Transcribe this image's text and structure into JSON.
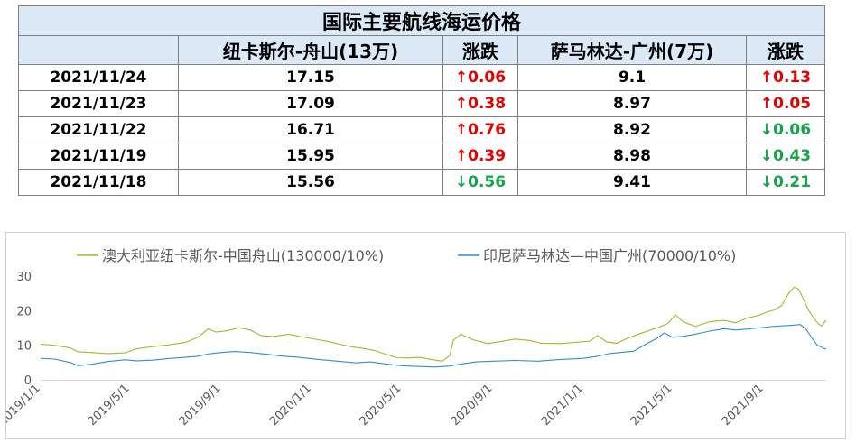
{
  "table": {
    "title": "国际主要航线海运价格",
    "headers": [
      "",
      "纽卡斯尔-舟山(13万)",
      "涨跌",
      "萨马林达-广州(7万)",
      "涨跌"
    ],
    "rows": [
      {
        "date": "2021/11/24",
        "route1": "17.15",
        "chg1": "↑0.06",
        "dir1": "up",
        "route2": "9.1",
        "chg2": "↑0.13",
        "dir2": "up"
      },
      {
        "date": "2021/11/23",
        "route1": "17.09",
        "chg1": "↑0.38",
        "dir1": "up",
        "route2": "8.97",
        "chg2": "↑0.05",
        "dir2": "up"
      },
      {
        "date": "2021/11/22",
        "route1": "16.71",
        "chg1": "↑0.76",
        "dir1": "up",
        "route2": "8.92",
        "chg2": "↓0.06",
        "dir2": "down"
      },
      {
        "date": "2021/11/19",
        "route1": "15.95",
        "chg1": "↑0.39",
        "dir1": "up",
        "route2": "8.98",
        "chg2": "↓0.43",
        "dir2": "down"
      },
      {
        "date": "2021/11/18",
        "route1": "15.56",
        "chg1": "↓0.56",
        "dir1": "down",
        "route2": "9.41",
        "chg2": "↓0.21",
        "dir2": "down"
      }
    ],
    "colors": {
      "header_bg": "#dbe9f6",
      "up": "#e60000",
      "down": "#17a34a"
    }
  },
  "chart_data": {
    "type": "line",
    "title": "",
    "xlabel": "",
    "ylabel": "",
    "ylim": [
      0,
      30
    ],
    "yticks": [
      "0",
      "10",
      "20",
      "30"
    ],
    "xlim": [
      "2019-01-01",
      "2021-11-24"
    ],
    "xticks": [
      {
        "date": "2019-01-01",
        "label": "2019/1/1"
      },
      {
        "date": "2019-05-01",
        "label": "2019/5/1"
      },
      {
        "date": "2019-09-01",
        "label": "2019/9/1"
      },
      {
        "date": "2020-01-01",
        "label": "2020/1/1"
      },
      {
        "date": "2020-05-01",
        "label": "2020/5/1"
      },
      {
        "date": "2020-09-01",
        "label": "2020/9/1"
      },
      {
        "date": "2021-01-01",
        "label": "2021/1/1"
      },
      {
        "date": "2021-05-01",
        "label": "2021/5/1"
      },
      {
        "date": "2021-09-01",
        "label": "2021/9/1"
      }
    ],
    "grid": false,
    "legend_position": "top",
    "series": [
      {
        "name": "澳大利亚纽卡斯尔-中国舟山(130000/10%)",
        "color": "#9bbb2e",
        "points": [
          [
            "2019-01-01",
            10.3
          ],
          [
            "2019-01-20",
            10.0
          ],
          [
            "2019-02-10",
            9.2
          ],
          [
            "2019-02-20",
            8.1
          ],
          [
            "2019-03-10",
            7.9
          ],
          [
            "2019-04-01",
            7.6
          ],
          [
            "2019-04-25",
            7.8
          ],
          [
            "2019-05-10",
            9.0
          ],
          [
            "2019-06-01",
            9.6
          ],
          [
            "2019-06-25",
            10.2
          ],
          [
            "2019-07-15",
            10.8
          ],
          [
            "2019-08-01",
            12.3
          ],
          [
            "2019-08-15",
            14.8
          ],
          [
            "2019-08-25",
            13.8
          ],
          [
            "2019-09-10",
            14.2
          ],
          [
            "2019-09-25",
            15.1
          ],
          [
            "2019-10-10",
            14.4
          ],
          [
            "2019-10-25",
            12.8
          ],
          [
            "2019-11-10",
            12.5
          ],
          [
            "2019-12-01",
            13.2
          ],
          [
            "2019-12-20",
            12.4
          ],
          [
            "2020-01-10",
            11.6
          ],
          [
            "2020-01-25",
            11.0
          ],
          [
            "2020-02-10",
            10.2
          ],
          [
            "2020-02-25",
            9.5
          ],
          [
            "2020-03-10",
            9.1
          ],
          [
            "2020-03-25",
            8.5
          ],
          [
            "2020-04-10",
            7.4
          ],
          [
            "2020-04-25",
            6.4
          ],
          [
            "2020-05-10",
            6.3
          ],
          [
            "2020-05-25",
            6.5
          ],
          [
            "2020-06-10",
            5.9
          ],
          [
            "2020-06-25",
            5.4
          ],
          [
            "2020-07-05",
            7.0
          ],
          [
            "2020-07-10",
            11.5
          ],
          [
            "2020-07-20",
            13.2
          ],
          [
            "2020-08-05",
            11.6
          ],
          [
            "2020-08-25",
            10.5
          ],
          [
            "2020-09-10",
            11.0
          ],
          [
            "2020-10-01",
            11.8
          ],
          [
            "2020-10-20",
            11.4
          ],
          [
            "2020-11-05",
            10.6
          ],
          [
            "2020-12-01",
            10.5
          ],
          [
            "2020-12-20",
            10.8
          ],
          [
            "2021-01-10",
            11.2
          ],
          [
            "2021-01-20",
            12.8
          ],
          [
            "2021-02-01",
            11.0
          ],
          [
            "2021-02-15",
            10.6
          ],
          [
            "2021-03-01",
            12.0
          ],
          [
            "2021-03-20",
            13.5
          ],
          [
            "2021-04-10",
            15.0
          ],
          [
            "2021-04-25",
            16.3
          ],
          [
            "2021-05-05",
            18.8
          ],
          [
            "2021-05-15",
            16.8
          ],
          [
            "2021-06-01",
            15.5
          ],
          [
            "2021-06-20",
            16.8
          ],
          [
            "2021-07-10",
            17.2
          ],
          [
            "2021-07-25",
            16.5
          ],
          [
            "2021-08-10",
            17.9
          ],
          [
            "2021-08-25",
            18.6
          ],
          [
            "2021-09-05",
            19.6
          ],
          [
            "2021-09-15",
            20.2
          ],
          [
            "2021-09-25",
            21.5
          ],
          [
            "2021-10-05",
            25.2
          ],
          [
            "2021-10-12",
            26.8
          ],
          [
            "2021-10-18",
            26.2
          ],
          [
            "2021-10-25",
            23.0
          ],
          [
            "2021-11-01",
            19.8
          ],
          [
            "2021-11-08",
            17.6
          ],
          [
            "2021-11-14",
            16.1
          ],
          [
            "2021-11-18",
            15.56
          ],
          [
            "2021-11-22",
            16.71
          ],
          [
            "2021-11-24",
            17.15
          ]
        ]
      },
      {
        "name": "印尼萨马林达—中国广州(70000/10%)",
        "color": "#2f8fd1",
        "points": [
          [
            "2019-01-01",
            6.2
          ],
          [
            "2019-01-20",
            6.0
          ],
          [
            "2019-02-10",
            5.0
          ],
          [
            "2019-02-20",
            4.1
          ],
          [
            "2019-03-10",
            4.5
          ],
          [
            "2019-04-01",
            5.3
          ],
          [
            "2019-04-25",
            5.8
          ],
          [
            "2019-05-10",
            5.5
          ],
          [
            "2019-06-01",
            5.7
          ],
          [
            "2019-06-25",
            6.2
          ],
          [
            "2019-07-15",
            6.5
          ],
          [
            "2019-08-01",
            6.8
          ],
          [
            "2019-08-15",
            7.5
          ],
          [
            "2019-09-01",
            7.9
          ],
          [
            "2019-09-20",
            8.2
          ],
          [
            "2019-10-10",
            7.9
          ],
          [
            "2019-11-01",
            7.4
          ],
          [
            "2019-11-20",
            6.9
          ],
          [
            "2019-12-15",
            6.5
          ],
          [
            "2020-01-10",
            5.9
          ],
          [
            "2020-02-10",
            5.3
          ],
          [
            "2020-03-01",
            4.9
          ],
          [
            "2020-03-20",
            5.2
          ],
          [
            "2020-04-10",
            4.6
          ],
          [
            "2020-05-01",
            4.1
          ],
          [
            "2020-05-20",
            3.9
          ],
          [
            "2020-06-15",
            3.7
          ],
          [
            "2020-07-05",
            4.0
          ],
          [
            "2020-07-20",
            4.6
          ],
          [
            "2020-08-10",
            5.2
          ],
          [
            "2020-09-01",
            5.4
          ],
          [
            "2020-10-01",
            5.6
          ],
          [
            "2020-11-01",
            5.4
          ],
          [
            "2020-12-01",
            5.9
          ],
          [
            "2021-01-01",
            6.2
          ],
          [
            "2021-01-20",
            6.8
          ],
          [
            "2021-02-05",
            7.6
          ],
          [
            "2021-02-20",
            7.9
          ],
          [
            "2021-03-10",
            8.3
          ],
          [
            "2021-03-25",
            10.2
          ],
          [
            "2021-04-10",
            12.0
          ],
          [
            "2021-04-20",
            13.6
          ],
          [
            "2021-05-01",
            12.3
          ],
          [
            "2021-05-15",
            12.6
          ],
          [
            "2021-06-01",
            13.2
          ],
          [
            "2021-06-20",
            14.1
          ],
          [
            "2021-07-10",
            14.8
          ],
          [
            "2021-07-25",
            14.4
          ],
          [
            "2021-08-10",
            14.7
          ],
          [
            "2021-08-25",
            15.0
          ],
          [
            "2021-09-10",
            15.4
          ],
          [
            "2021-09-25",
            15.6
          ],
          [
            "2021-10-10",
            15.8
          ],
          [
            "2021-10-20",
            16.0
          ],
          [
            "2021-10-28",
            14.6
          ],
          [
            "2021-11-05",
            12.0
          ],
          [
            "2021-11-12",
            10.0
          ],
          [
            "2021-11-18",
            9.41
          ],
          [
            "2021-11-22",
            8.92
          ],
          [
            "2021-11-24",
            9.1
          ]
        ]
      }
    ]
  }
}
